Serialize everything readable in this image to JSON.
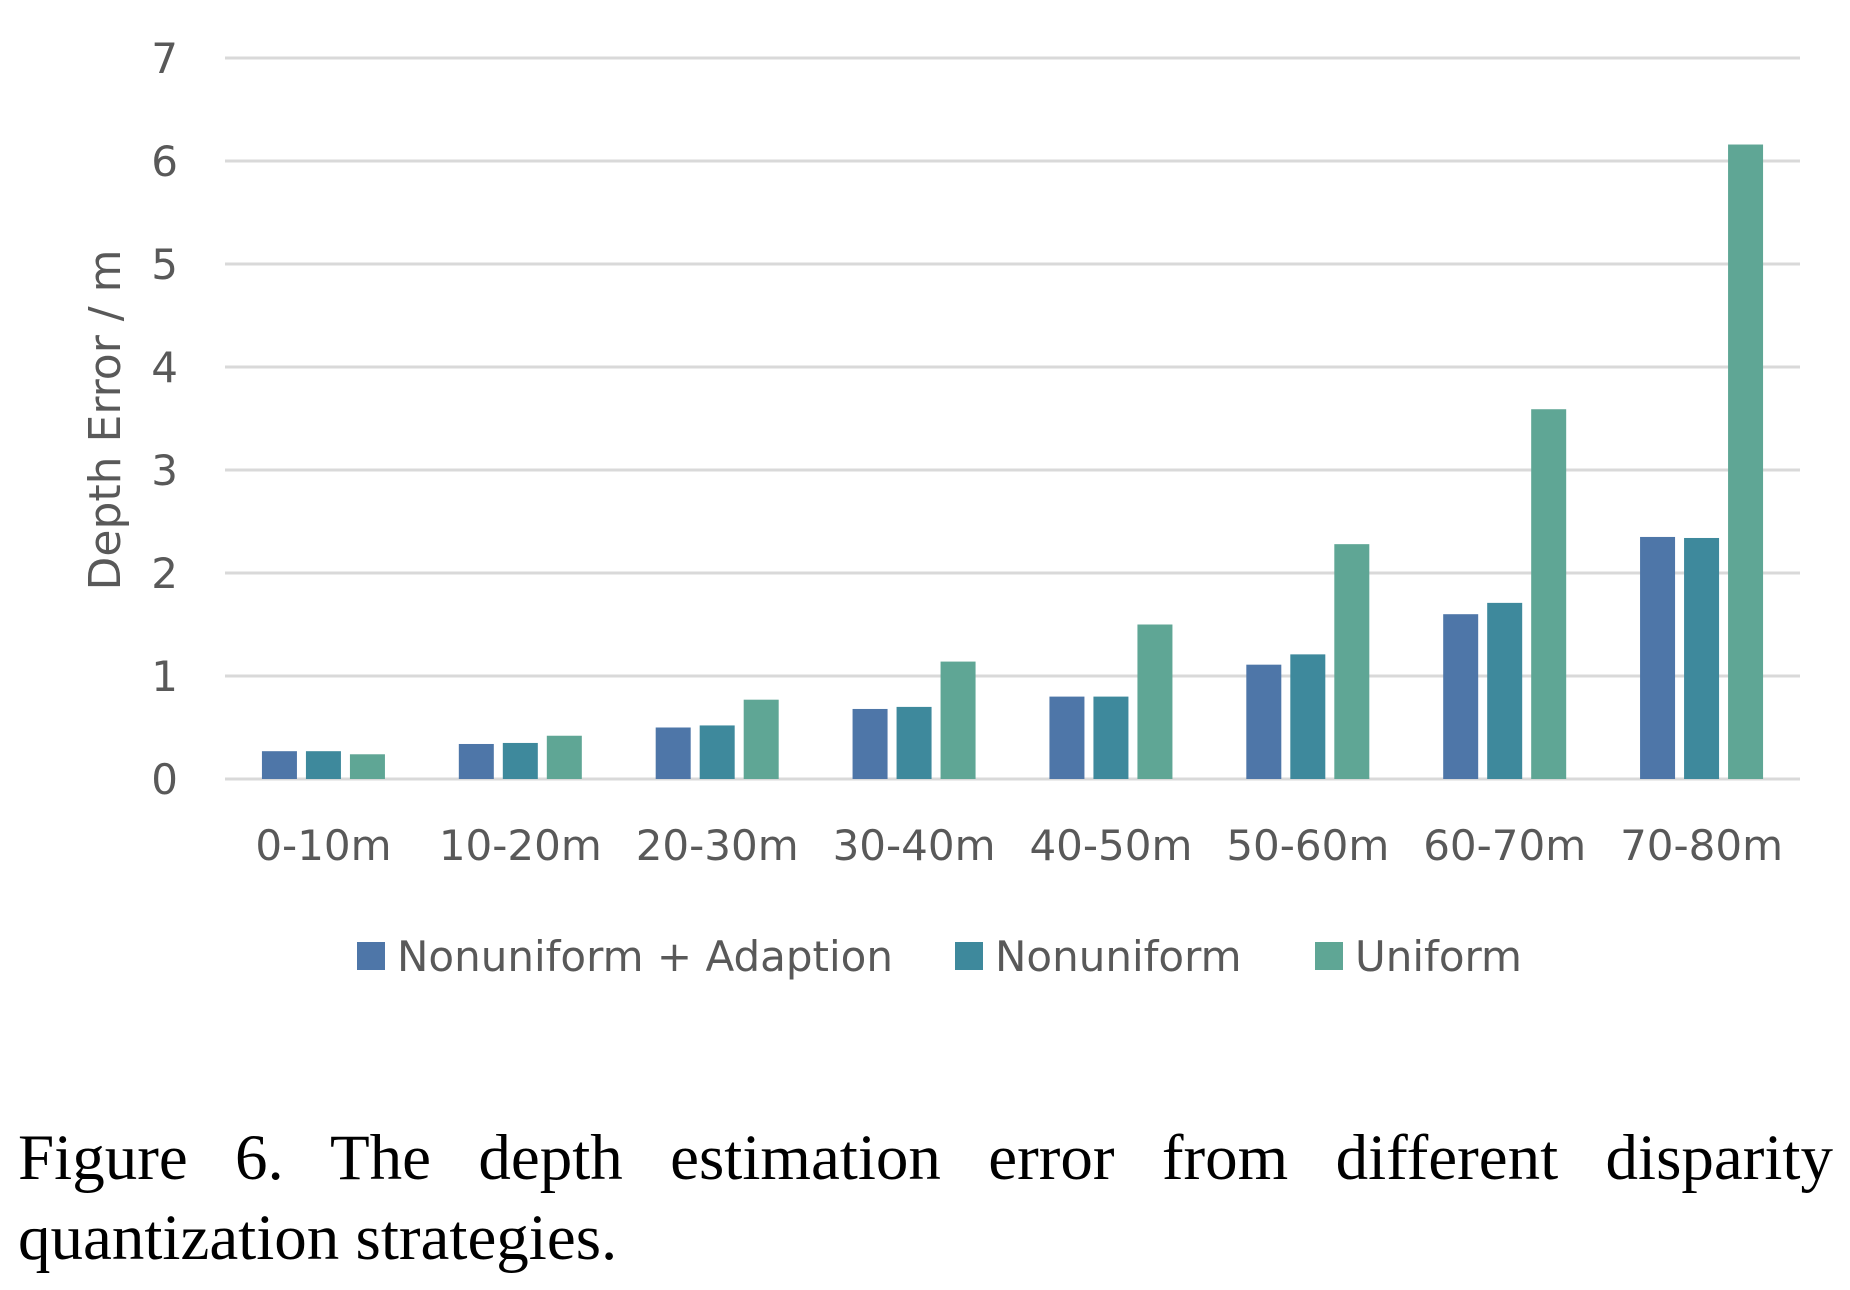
{
  "chart_data": {
    "type": "bar",
    "ylabel": "Depth Error / m",
    "xlabel": "",
    "ylim": [
      0,
      7
    ],
    "yticks": [
      "0",
      "1",
      "2",
      "3",
      "4",
      "5",
      "6",
      "7"
    ],
    "grid": true,
    "legend_position": "bottom",
    "categories": [
      "0-10m",
      "10-20m",
      "20-30m",
      "30-40m",
      "40-50m",
      "50-60m",
      "60-70m",
      "70-80m"
    ],
    "series": [
      {
        "name": "Nonuniform + Adaption",
        "color": "#4e76a8",
        "values": [
          0.27,
          0.34,
          0.5,
          0.68,
          0.8,
          1.11,
          1.6,
          2.35
        ]
      },
      {
        "name": "Nonuniform",
        "color": "#3e899c",
        "values": [
          0.27,
          0.35,
          0.52,
          0.7,
          0.8,
          1.21,
          1.71,
          2.34
        ]
      },
      {
        "name": "Uniform",
        "color": "#5fa695",
        "values": [
          0.24,
          0.42,
          0.77,
          1.14,
          1.5,
          2.28,
          3.59,
          6.16
        ]
      }
    ]
  },
  "caption": "Figure 6. The depth estimation error from different disparity quantization strategies."
}
